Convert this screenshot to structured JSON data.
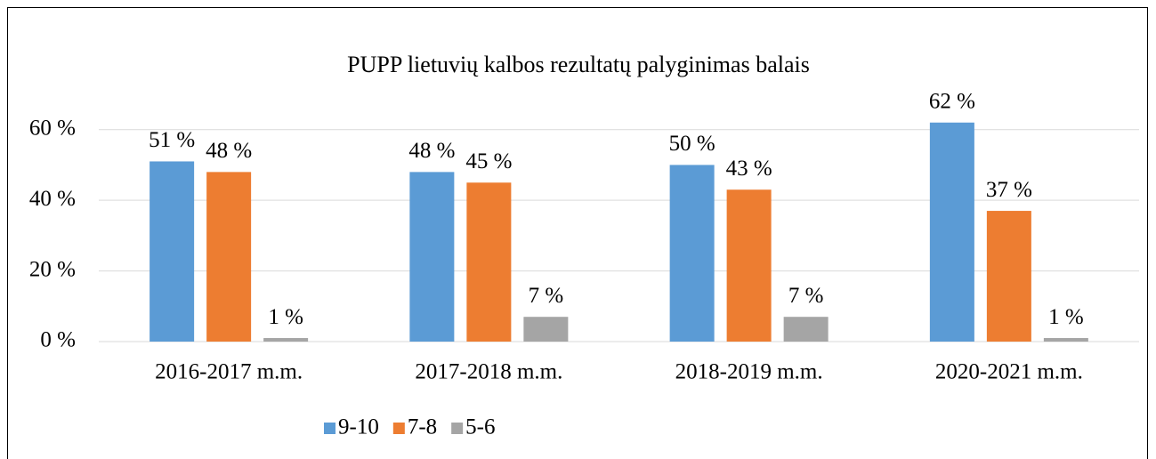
{
  "chart_data": {
    "type": "bar",
    "title": "PUPP lietuvių kalbos rezultatų palyginimas balais",
    "categories": [
      "2016-2017 m.m.",
      "2017-2018 m.m.",
      "2018-2019 m.m.",
      "2020-2021 m.m."
    ],
    "series": [
      {
        "name": "9-10",
        "color": "#5b9bd5",
        "values": [
          51,
          48,
          50,
          62
        ],
        "value_labels": [
          "51 %",
          "48 %",
          "50 %",
          "62 %"
        ]
      },
      {
        "name": "7-8",
        "color": "#ed7d31",
        "values": [
          48,
          45,
          43,
          37
        ],
        "value_labels": [
          "48 %",
          "45 %",
          "43 %",
          "37 %"
        ]
      },
      {
        "name": "5-6",
        "color": "#a5a5a5",
        "values": [
          1,
          7,
          7,
          1
        ],
        "value_labels": [
          "1 %",
          "7 %",
          "7 %",
          "1 %"
        ]
      }
    ],
    "ylim": [
      0,
      70
    ],
    "yticks": [
      {
        "value": 0,
        "label": "0 %"
      },
      {
        "value": 20,
        "label": "20 %"
      },
      {
        "value": 40,
        "label": "40 %"
      },
      {
        "value": 60,
        "label": "60 %"
      }
    ],
    "grid": true,
    "legend": "bottom"
  }
}
